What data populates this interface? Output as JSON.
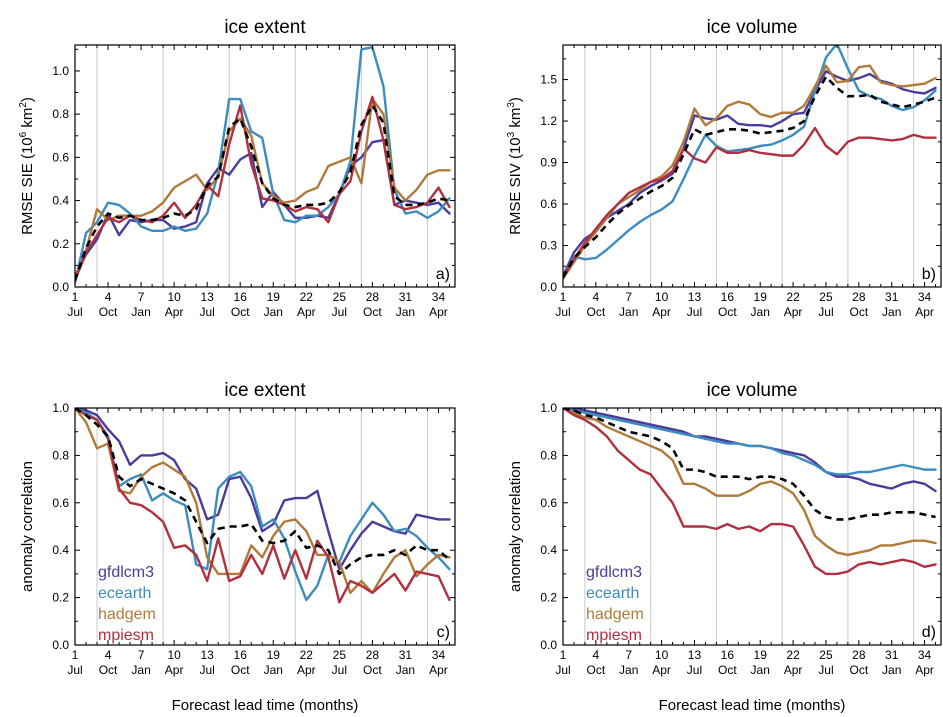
{
  "figure": {
    "xlabel": "Forecast lead time (months)"
  },
  "chart_data": [
    {
      "type": "line",
      "title": "ice extent",
      "ylabel": "RMSE SIE (10⁶ km²)",
      "ylabel_base": "RMSE SIE (10",
      "ylabel_exp1": "6",
      "ylabel_mid": " km",
      "ylabel_exp2": "2",
      "ylabel_end": ")",
      "tag": "a)",
      "xlim": [
        1,
        35.5
      ],
      "ylim": [
        0,
        1.12
      ],
      "yticks": [
        "0.0",
        "0.2",
        "0.4",
        "0.6",
        "0.8",
        "1.0"
      ],
      "ytick_values": [
        0,
        0.2,
        0.4,
        0.6,
        0.8,
        1.0
      ],
      "xticks": [
        1,
        4,
        7,
        10,
        13,
        16,
        19,
        22,
        25,
        28,
        31,
        34
      ],
      "xtick_months": [
        "Jul",
        "Oct",
        "Jan",
        "Apr",
        "Jul",
        "Oct",
        "Jan",
        "Apr",
        "Jul",
        "Oct",
        "Jan",
        "Apr"
      ],
      "vlines": [
        3,
        9,
        15,
        21,
        27,
        33
      ],
      "legend": false,
      "series": [
        {
          "name": "gfdlcm3",
          "color": "#4b3c9c",
          "dash": false,
          "values": [
            0.05,
            0.15,
            0.22,
            0.34,
            0.24,
            0.31,
            0.3,
            0.31,
            0.31,
            0.27,
            0.28,
            0.3,
            0.48,
            0.55,
            0.52,
            0.59,
            0.62,
            0.37,
            0.44,
            0.38,
            0.32,
            0.32,
            0.33,
            0.32,
            0.43,
            0.56,
            0.6,
            0.67,
            0.68,
            0.38,
            0.4,
            0.39,
            0.38,
            0.39,
            0.34
          ]
        },
        {
          "name": "ecearth",
          "color": "#3c8cc0",
          "dash": false,
          "values": [
            0.02,
            0.25,
            0.3,
            0.39,
            0.38,
            0.34,
            0.28,
            0.26,
            0.26,
            0.28,
            0.26,
            0.27,
            0.34,
            0.53,
            0.87,
            0.87,
            0.72,
            0.69,
            0.43,
            0.31,
            0.3,
            0.33,
            0.33,
            0.37,
            0.43,
            0.58,
            1.1,
            1.11,
            0.93,
            0.45,
            0.34,
            0.35,
            0.32,
            0.35,
            0.41
          ]
        },
        {
          "name": "hadgem",
          "color": "#b07a3a",
          "dash": false,
          "values": [
            0.04,
            0.17,
            0.36,
            0.31,
            0.33,
            0.33,
            0.33,
            0.35,
            0.39,
            0.46,
            0.49,
            0.52,
            0.45,
            0.51,
            0.72,
            0.78,
            0.7,
            0.48,
            0.42,
            0.39,
            0.4,
            0.44,
            0.46,
            0.56,
            0.58,
            0.6,
            0.48,
            0.87,
            0.8,
            0.46,
            0.4,
            0.45,
            0.52,
            0.54,
            0.54
          ]
        },
        {
          "name": "mpiesm",
          "color": "#b03040",
          "dash": false,
          "values": [
            0.03,
            0.16,
            0.24,
            0.32,
            0.3,
            0.33,
            0.31,
            0.3,
            0.33,
            0.39,
            0.32,
            0.38,
            0.47,
            0.42,
            0.66,
            0.84,
            0.57,
            0.41,
            0.4,
            0.38,
            0.35,
            0.37,
            0.36,
            0.3,
            0.43,
            0.49,
            0.72,
            0.88,
            0.68,
            0.38,
            0.36,
            0.37,
            0.39,
            0.46,
            0.37
          ]
        },
        {
          "name": "ensemble",
          "color": "#000000",
          "dash": true,
          "values": [
            0.03,
            0.18,
            0.28,
            0.34,
            0.32,
            0.33,
            0.31,
            0.31,
            0.32,
            0.34,
            0.33,
            0.36,
            0.47,
            0.51,
            0.74,
            0.78,
            0.65,
            0.48,
            0.41,
            0.38,
            0.37,
            0.38,
            0.38,
            0.39,
            0.44,
            0.53,
            0.75,
            0.84,
            0.76,
            0.42,
            0.38,
            0.38,
            0.39,
            0.41,
            0.4
          ]
        }
      ]
    },
    {
      "type": "line",
      "title": "ice volume",
      "ylabel": "RMSE SIV (10³ km³)",
      "ylabel_base": "RMSE SIV (10",
      "ylabel_exp1": "3",
      "ylabel_mid": " km",
      "ylabel_exp2": "3",
      "ylabel_end": ")",
      "tag": "b)",
      "xlim": [
        1,
        35.5
      ],
      "ylim": [
        0,
        1.75
      ],
      "yticks": [
        "0.0",
        "0.3",
        "0.6",
        "0.9",
        "1.2",
        "1.5"
      ],
      "ytick_values": [
        0,
        0.3,
        0.6,
        0.9,
        1.2,
        1.5
      ],
      "xticks": [
        1,
        4,
        7,
        10,
        13,
        16,
        19,
        22,
        25,
        28,
        31,
        34
      ],
      "xtick_months": [
        "Jul",
        "Oct",
        "Jan",
        "Apr",
        "Jul",
        "Oct",
        "Jan",
        "Apr",
        "Jul",
        "Oct",
        "Jan",
        "Apr"
      ],
      "vlines": [
        3,
        9,
        15,
        21,
        27,
        33
      ],
      "legend": false,
      "series": [
        {
          "name": "gfdlcm3",
          "color": "#4b3c9c",
          "dash": false,
          "values": [
            0.08,
            0.25,
            0.35,
            0.4,
            0.5,
            0.55,
            0.6,
            0.68,
            0.73,
            0.77,
            0.82,
            1.0,
            1.24,
            1.22,
            1.21,
            1.24,
            1.18,
            1.17,
            1.17,
            1.16,
            1.2,
            1.25,
            1.26,
            1.42,
            1.56,
            1.52,
            1.49,
            1.51,
            1.54,
            1.49,
            1.47,
            1.43,
            1.41,
            1.4,
            1.44
          ]
        },
        {
          "name": "ecearth",
          "color": "#3c8cc0",
          "dash": false,
          "values": [
            0.07,
            0.22,
            0.2,
            0.21,
            0.27,
            0.34,
            0.41,
            0.47,
            0.52,
            0.56,
            0.62,
            0.78,
            0.95,
            1.1,
            1.02,
            0.98,
            0.99,
            1.0,
            1.02,
            1.03,
            1.06,
            1.1,
            1.16,
            1.42,
            1.66,
            1.76,
            1.58,
            1.42,
            1.38,
            1.36,
            1.31,
            1.28,
            1.3,
            1.35,
            1.42
          ]
        },
        {
          "name": "hadgem",
          "color": "#b07a3a",
          "dash": false,
          "values": [
            0.06,
            0.18,
            0.3,
            0.4,
            0.5,
            0.6,
            0.65,
            0.7,
            0.76,
            0.8,
            0.88,
            1.05,
            1.29,
            1.17,
            1.22,
            1.31,
            1.34,
            1.32,
            1.25,
            1.23,
            1.26,
            1.26,
            1.31,
            1.45,
            1.6,
            1.48,
            1.49,
            1.59,
            1.6,
            1.48,
            1.46,
            1.45,
            1.46,
            1.47,
            1.51
          ]
        },
        {
          "name": "mpiesm",
          "color": "#b03040",
          "dash": false,
          "values": [
            0.07,
            0.2,
            0.32,
            0.42,
            0.52,
            0.6,
            0.68,
            0.72,
            0.76,
            0.78,
            0.84,
            1.0,
            0.93,
            0.9,
            1.01,
            0.97,
            0.97,
            0.99,
            0.97,
            0.96,
            0.95,
            0.95,
            1.03,
            1.15,
            1.02,
            0.96,
            1.05,
            1.08,
            1.08,
            1.07,
            1.06,
            1.07,
            1.1,
            1.08,
            1.08
          ]
        },
        {
          "name": "ensemble",
          "color": "#000000",
          "dash": true,
          "values": [
            0.07,
            0.21,
            0.29,
            0.36,
            0.45,
            0.53,
            0.59,
            0.64,
            0.69,
            0.73,
            0.79,
            0.96,
            1.14,
            1.1,
            1.12,
            1.14,
            1.14,
            1.13,
            1.11,
            1.12,
            1.13,
            1.15,
            1.2,
            1.38,
            1.52,
            1.44,
            1.38,
            1.38,
            1.39,
            1.34,
            1.32,
            1.3,
            1.32,
            1.34,
            1.37
          ]
        }
      ]
    },
    {
      "type": "line",
      "title": "ice extent",
      "ylabel": "anomaly correlation",
      "tag": "c)",
      "xlim": [
        1,
        35.5
      ],
      "ylim": [
        0,
        1
      ],
      "yticks": [
        "0.0",
        "0.2",
        "0.4",
        "0.6",
        "0.8",
        "1.0"
      ],
      "ytick_values": [
        0,
        0.2,
        0.4,
        0.6,
        0.8,
        1.0
      ],
      "xticks": [
        1,
        4,
        7,
        10,
        13,
        16,
        19,
        22,
        25,
        28,
        31,
        34
      ],
      "xtick_months": [
        "Jul",
        "Oct",
        "Jan",
        "Apr",
        "Jul",
        "Oct",
        "Jan",
        "Apr",
        "Jul",
        "Oct",
        "Jan",
        "Apr"
      ],
      "vlines": [
        3,
        9,
        15,
        21,
        27,
        33
      ],
      "legend": true,
      "series": [
        {
          "name": "gfdlcm3",
          "color": "#4b3c9c",
          "dash": false,
          "values": [
            1.0,
            0.99,
            0.97,
            0.91,
            0.86,
            0.76,
            0.8,
            0.8,
            0.81,
            0.78,
            0.7,
            0.66,
            0.53,
            0.55,
            0.7,
            0.71,
            0.62,
            0.48,
            0.51,
            0.61,
            0.62,
            0.62,
            0.65,
            0.48,
            0.32,
            0.4,
            0.47,
            0.52,
            0.5,
            0.48,
            0.47,
            0.55,
            0.54,
            0.53,
            0.53
          ]
        },
        {
          "name": "ecearth",
          "color": "#3c8cc0",
          "dash": false,
          "values": [
            1.0,
            0.98,
            0.95,
            0.88,
            0.67,
            0.7,
            0.72,
            0.61,
            0.64,
            0.61,
            0.59,
            0.34,
            0.32,
            0.66,
            0.71,
            0.73,
            0.67,
            0.5,
            0.53,
            0.45,
            0.31,
            0.19,
            0.25,
            0.38,
            0.35,
            0.46,
            0.53,
            0.6,
            0.55,
            0.48,
            0.49,
            0.46,
            0.41,
            0.37,
            0.32
          ]
        },
        {
          "name": "hadgem",
          "color": "#b07a3a",
          "dash": false,
          "values": [
            1.0,
            0.94,
            0.83,
            0.85,
            0.65,
            0.64,
            0.71,
            0.75,
            0.77,
            0.74,
            0.71,
            0.6,
            0.37,
            0.3,
            0.3,
            0.3,
            0.42,
            0.37,
            0.46,
            0.52,
            0.53,
            0.48,
            0.38,
            0.38,
            0.35,
            0.22,
            0.27,
            0.22,
            0.3,
            0.37,
            0.4,
            0.29,
            0.34,
            0.38,
            0.37
          ]
        },
        {
          "name": "mpiesm",
          "color": "#b03040",
          "dash": false,
          "values": [
            1.0,
            0.97,
            0.95,
            0.87,
            0.66,
            0.6,
            0.59,
            0.56,
            0.52,
            0.41,
            0.42,
            0.38,
            0.27,
            0.45,
            0.27,
            0.29,
            0.38,
            0.3,
            0.42,
            0.28,
            0.4,
            0.28,
            0.44,
            0.37,
            0.18,
            0.27,
            0.25,
            0.22,
            0.26,
            0.3,
            0.23,
            0.31,
            0.3,
            0.29,
            0.19
          ]
        },
        {
          "name": "ensemble",
          "color": "#000000",
          "dash": true,
          "values": [
            1.0,
            0.97,
            0.93,
            0.88,
            0.71,
            0.67,
            0.7,
            0.68,
            0.66,
            0.64,
            0.61,
            0.52,
            0.43,
            0.49,
            0.5,
            0.5,
            0.51,
            0.44,
            0.43,
            0.44,
            0.48,
            0.41,
            0.42,
            0.4,
            0.3,
            0.34,
            0.37,
            0.38,
            0.38,
            0.4,
            0.38,
            0.42,
            0.4,
            0.4,
            0.36
          ]
        }
      ]
    },
    {
      "type": "line",
      "title": "ice volume",
      "ylabel": "anomaly correlation",
      "tag": "d)",
      "xlim": [
        1,
        35.5
      ],
      "ylim": [
        0,
        1
      ],
      "yticks": [
        "0.0",
        "0.2",
        "0.4",
        "0.6",
        "0.8",
        "1.0"
      ],
      "ytick_values": [
        0,
        0.2,
        0.4,
        0.6,
        0.8,
        1.0
      ],
      "xticks": [
        1,
        4,
        7,
        10,
        13,
        16,
        19,
        22,
        25,
        28,
        31,
        34
      ],
      "xtick_months": [
        "Jul",
        "Oct",
        "Jan",
        "Apr",
        "Jul",
        "Oct",
        "Jan",
        "Apr",
        "Jul",
        "Oct",
        "Jan",
        "Apr"
      ],
      "vlines": [
        3,
        9,
        15,
        21,
        27,
        33
      ],
      "legend": true,
      "series": [
        {
          "name": "gfdlcm3",
          "color": "#4b3c9c",
          "dash": false,
          "values": [
            1.0,
            1.0,
            0.99,
            0.98,
            0.97,
            0.96,
            0.95,
            0.94,
            0.93,
            0.92,
            0.91,
            0.9,
            0.88,
            0.88,
            0.87,
            0.86,
            0.85,
            0.84,
            0.84,
            0.83,
            0.82,
            0.81,
            0.8,
            0.77,
            0.73,
            0.71,
            0.71,
            0.7,
            0.68,
            0.67,
            0.66,
            0.68,
            0.69,
            0.68,
            0.65
          ]
        },
        {
          "name": "ecearth",
          "color": "#3c8cc0",
          "dash": false,
          "values": [
            1.0,
            0.99,
            0.98,
            0.97,
            0.96,
            0.95,
            0.94,
            0.93,
            0.92,
            0.91,
            0.9,
            0.89,
            0.88,
            0.87,
            0.86,
            0.85,
            0.85,
            0.84,
            0.84,
            0.83,
            0.81,
            0.8,
            0.78,
            0.76,
            0.73,
            0.72,
            0.72,
            0.73,
            0.73,
            0.74,
            0.75,
            0.76,
            0.75,
            0.74,
            0.74
          ]
        },
        {
          "name": "hadgem",
          "color": "#b07a3a",
          "dash": false,
          "values": [
            1.0,
            0.98,
            0.96,
            0.95,
            0.92,
            0.9,
            0.88,
            0.86,
            0.84,
            0.82,
            0.78,
            0.68,
            0.68,
            0.66,
            0.63,
            0.63,
            0.63,
            0.65,
            0.68,
            0.69,
            0.67,
            0.64,
            0.57,
            0.46,
            0.42,
            0.39,
            0.38,
            0.39,
            0.4,
            0.42,
            0.42,
            0.43,
            0.44,
            0.44,
            0.43
          ]
        },
        {
          "name": "mpiesm",
          "color": "#b03040",
          "dash": false,
          "values": [
            1.0,
            0.97,
            0.95,
            0.92,
            0.88,
            0.82,
            0.78,
            0.74,
            0.72,
            0.66,
            0.6,
            0.5,
            0.5,
            0.5,
            0.49,
            0.51,
            0.49,
            0.5,
            0.48,
            0.51,
            0.51,
            0.5,
            0.42,
            0.33,
            0.3,
            0.3,
            0.31,
            0.34,
            0.35,
            0.34,
            0.35,
            0.36,
            0.35,
            0.33,
            0.34
          ]
        },
        {
          "name": "ensemble",
          "color": "#000000",
          "dash": true,
          "values": [
            1.0,
            0.99,
            0.97,
            0.96,
            0.94,
            0.92,
            0.9,
            0.89,
            0.88,
            0.86,
            0.83,
            0.74,
            0.74,
            0.73,
            0.71,
            0.71,
            0.71,
            0.7,
            0.71,
            0.71,
            0.7,
            0.68,
            0.63,
            0.57,
            0.54,
            0.53,
            0.53,
            0.54,
            0.55,
            0.55,
            0.56,
            0.56,
            0.56,
            0.55,
            0.54
          ]
        }
      ]
    }
  ]
}
